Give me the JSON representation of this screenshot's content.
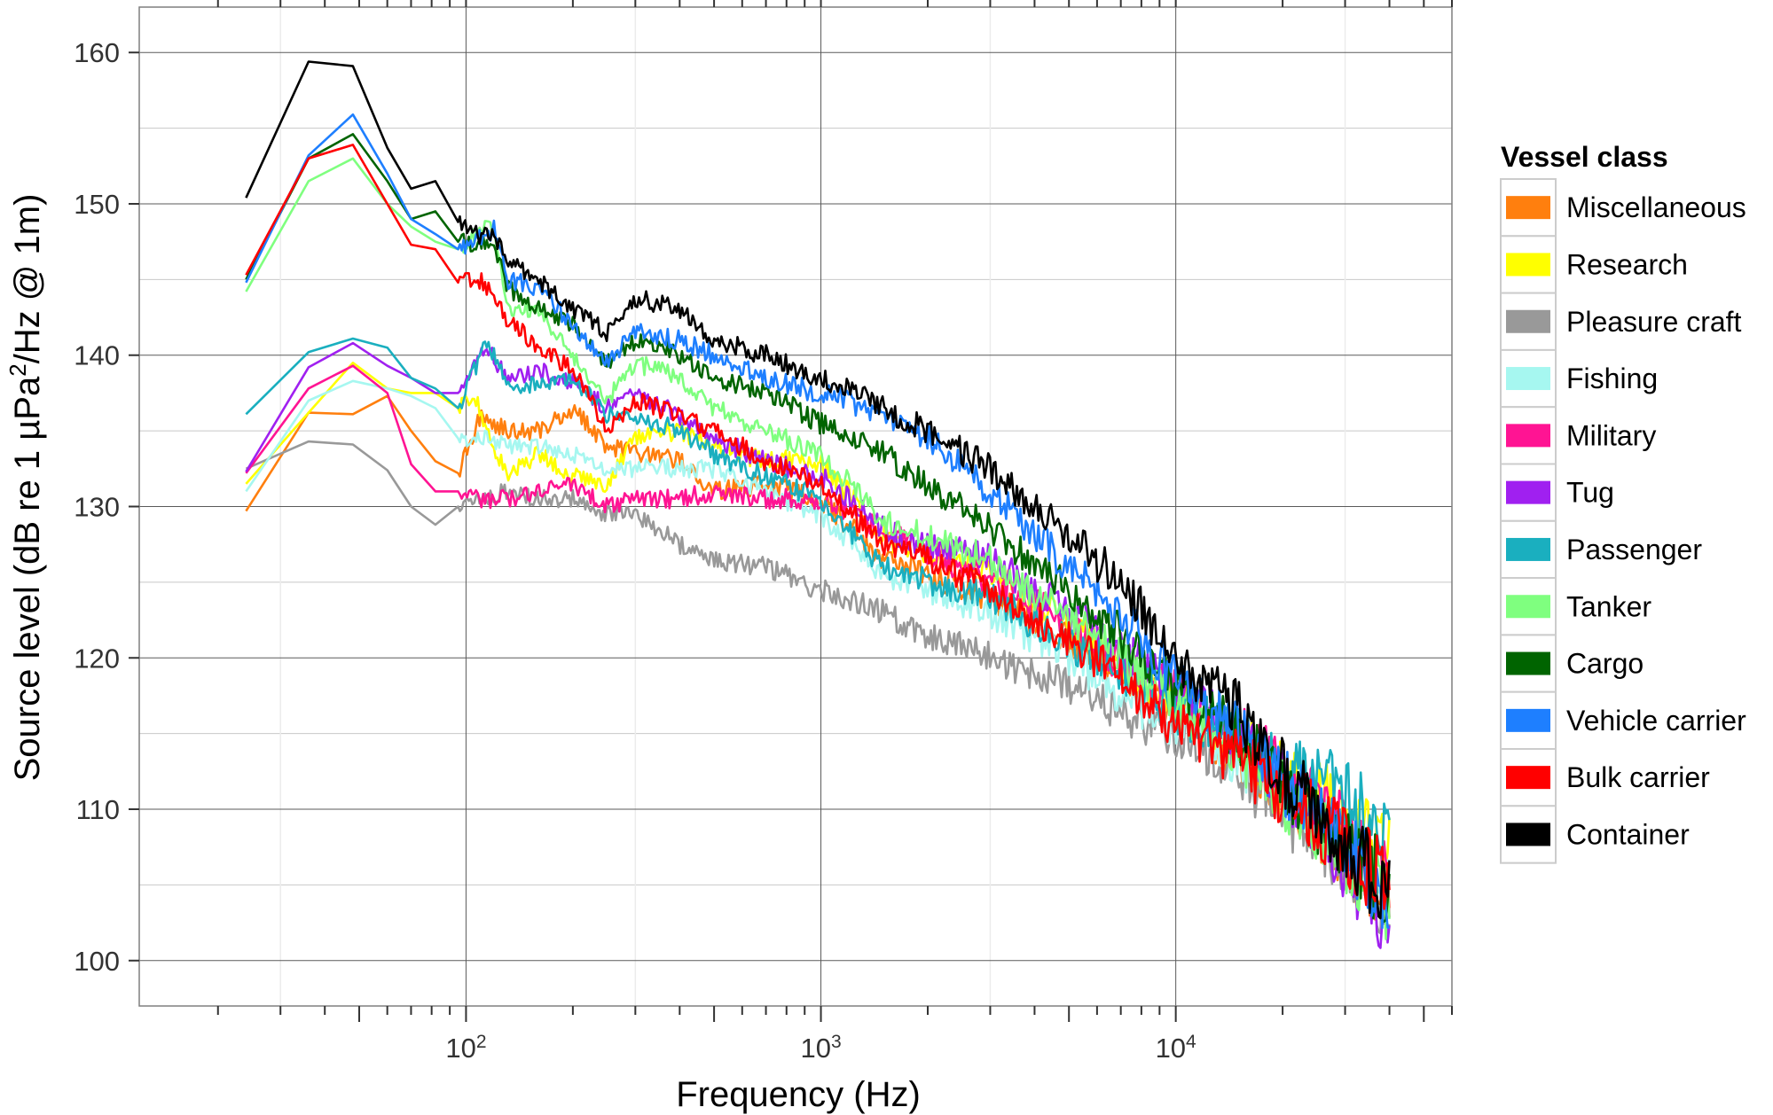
{
  "chart_data": {
    "type": "line",
    "xlabel": "Frequency (Hz)",
    "ylabel": "Source level (dB re 1 µPa²/Hz @ 1m)",
    "ylabel_parts": {
      "pre": "Source level (dB re 1 µPa",
      "sup": "2",
      "post": "/Hz @ 1m)"
    },
    "x_scale": "log10",
    "xlim": [
      12,
      60000
    ],
    "ylim": [
      97,
      163
    ],
    "yticks": [
      100,
      110,
      120,
      130,
      140,
      150,
      160
    ],
    "ytick_labels": [
      "100",
      "110",
      "120",
      "130",
      "140",
      "150",
      "160"
    ],
    "xticks": [
      100,
      1000,
      10000
    ],
    "xtick_labels": [
      {
        "base": "10",
        "exp": "2"
      },
      {
        "base": "10",
        "exp": "3"
      },
      {
        "base": "10",
        "exp": "4"
      }
    ],
    "grid": true,
    "legend_position": "right",
    "legend_title": "Vessel class",
    "series": [
      {
        "name": "Miscellaneous",
        "color": "#ff7f0e",
        "x": [
          24,
          36,
          48,
          60,
          70,
          82,
          95,
          110,
          130,
          160,
          200,
          250,
          300,
          400,
          500,
          700,
          1000,
          1500,
          2000,
          3000,
          5000,
          7000,
          10000,
          15000,
          20000,
          30000,
          40000
        ],
        "y": [
          129.7,
          136.2,
          136.1,
          137.3,
          135,
          133,
          132.2,
          136,
          135,
          135,
          136.5,
          134,
          133.5,
          133,
          131,
          131.5,
          130.5,
          126.5,
          125.5,
          124,
          121,
          119,
          116.8,
          113.5,
          111,
          107,
          104
        ]
      },
      {
        "name": "Research",
        "color": "#ffff00",
        "x": [
          24,
          36,
          48,
          60,
          70,
          82,
          95,
          105,
          115,
          130,
          160,
          200,
          250,
          300,
          400,
          500,
          700,
          1000,
          1500,
          2000,
          3000,
          5000,
          7000,
          10000,
          15000,
          20000,
          30000,
          40000
        ],
        "y": [
          131.5,
          136.2,
          139.5,
          137.8,
          137.5,
          137.5,
          136.5,
          137.5,
          135,
          132,
          133.5,
          132,
          131.5,
          134.5,
          135,
          134,
          133,
          133,
          128,
          127,
          126,
          122,
          119.5,
          117,
          114.5,
          112.5,
          110,
          107.5
        ]
      },
      {
        "name": "Pleasure craft",
        "color": "#999999",
        "x": [
          24,
          36,
          48,
          60,
          70,
          82,
          95,
          110,
          130,
          160,
          200,
          250,
          300,
          400,
          500,
          700,
          1000,
          1500,
          2000,
          3000,
          5000,
          7000,
          10000,
          15000,
          20000,
          30000,
          40000
        ],
        "y": [
          132.5,
          134.3,
          134.1,
          132.4,
          130,
          128.8,
          130,
          130.5,
          131,
          130.5,
          130.5,
          129.5,
          129.5,
          127.5,
          126.5,
          126,
          124.5,
          123,
          121.5,
          120,
          118.2,
          116.5,
          114.8,
          112.5,
          110,
          106.5,
          104
        ]
      },
      {
        "name": "Fishing",
        "color": "#a6f7f0",
        "x": [
          24,
          36,
          48,
          60,
          70,
          82,
          95,
          110,
          130,
          160,
          200,
          250,
          300,
          400,
          500,
          700,
          1000,
          1500,
          2000,
          3000,
          5000,
          7000,
          10000,
          15000,
          20000,
          30000,
          40000
        ],
        "y": [
          131,
          137,
          138.3,
          137.8,
          137.3,
          136.5,
          134.5,
          134.5,
          134,
          134,
          133.5,
          132.5,
          132.5,
          132.5,
          132.5,
          131,
          129.5,
          125.5,
          124.5,
          123,
          120,
          117.5,
          115.5,
          113.5,
          111.5,
          107.5,
          104.5
        ]
      },
      {
        "name": "Military",
        "color": "#ff1493",
        "x": [
          24,
          36,
          48,
          60,
          70,
          82,
          95,
          110,
          130,
          160,
          200,
          250,
          300,
          400,
          500,
          700,
          1000,
          1500,
          2000,
          3000,
          5000,
          7000,
          10000,
          15000,
          20000,
          30000,
          40000
        ],
        "y": [
          132.2,
          137.8,
          139.3,
          137.5,
          132.8,
          131,
          131,
          130.5,
          130.5,
          131,
          131.5,
          130,
          130.5,
          130.5,
          131,
          130.5,
          130.5,
          128.5,
          127,
          125,
          122.5,
          119.5,
          117.5,
          115,
          112.5,
          108.5,
          105.5
        ]
      },
      {
        "name": "Tug",
        "color": "#a020f0",
        "x": [
          24,
          36,
          48,
          60,
          70,
          82,
          95,
          110,
          115,
          130,
          160,
          200,
          250,
          300,
          400,
          500,
          700,
          1000,
          1500,
          2000,
          3000,
          5000,
          7000,
          10000,
          15000,
          20000,
          30000,
          40000
        ],
        "y": [
          132.3,
          139.2,
          140.8,
          139.3,
          138.5,
          137.5,
          137.5,
          140,
          140.5,
          138.5,
          139,
          138.2,
          136.5,
          137.5,
          136,
          134.5,
          133,
          132,
          128.5,
          127.5,
          126.5,
          123,
          120.5,
          118,
          115,
          112,
          106.5,
          102.5
        ]
      },
      {
        "name": "Passenger",
        "color": "#1aafbf",
        "x": [
          24,
          36,
          48,
          60,
          70,
          82,
          95,
          110,
          115,
          130,
          160,
          200,
          250,
          300,
          400,
          500,
          700,
          1000,
          1500,
          2000,
          3000,
          5000,
          7000,
          10000,
          15000,
          20000,
          30000,
          40000
        ],
        "y": [
          136.1,
          140.2,
          141.1,
          140.5,
          138.5,
          137.8,
          136.5,
          140,
          141,
          138,
          138,
          138.5,
          136,
          136,
          135,
          133.5,
          132,
          130.5,
          126,
          125,
          124,
          121,
          119.2,
          116.5,
          115,
          112.5,
          111.5,
          107
        ]
      },
      {
        "name": "Tanker",
        "color": "#7fff7f",
        "x": [
          24,
          36,
          48,
          60,
          70,
          82,
          95,
          110,
          120,
          130,
          160,
          200,
          250,
          300,
          400,
          500,
          700,
          1000,
          1500,
          2000,
          3000,
          5000,
          7000,
          10000,
          15000,
          20000,
          30000,
          40000
        ],
        "y": [
          144.2,
          151.5,
          153,
          150,
          148.5,
          147.5,
          147,
          148.2,
          148.5,
          143,
          143,
          140,
          137,
          139.5,
          138.5,
          136.5,
          135,
          133.5,
          129,
          128,
          126.5,
          122.5,
          120,
          117,
          114,
          111,
          107,
          104
        ]
      },
      {
        "name": "Cargo",
        "color": "#006400",
        "x": [
          24,
          36,
          48,
          60,
          70,
          82,
          95,
          110,
          120,
          130,
          160,
          200,
          250,
          300,
          400,
          500,
          700,
          1000,
          1500,
          2000,
          3000,
          5000,
          7000,
          10000,
          15000,
          20000,
          30000,
          40000
        ],
        "y": [
          145,
          153,
          154.6,
          151.5,
          149,
          149.5,
          147.5,
          147.3,
          147.5,
          144.5,
          143,
          142,
          139.5,
          141,
          140,
          138.5,
          137.5,
          135.5,
          133.5,
          131.5,
          128.5,
          124.5,
          121.5,
          118,
          115,
          112,
          107.5,
          104.5
        ]
      },
      {
        "name": "Vehicle carrier",
        "color": "#1e7fff",
        "x": [
          24,
          36,
          48,
          60,
          70,
          82,
          95,
          110,
          120,
          130,
          160,
          200,
          250,
          300,
          400,
          500,
          700,
          1000,
          1500,
          2000,
          3000,
          5000,
          7000,
          10000,
          15000,
          20000,
          30000,
          40000
        ],
        "y": [
          144.8,
          153.2,
          155.9,
          152,
          149,
          148,
          147,
          147.8,
          148.3,
          145,
          144.5,
          142,
          139.5,
          141.5,
          141,
          140,
          138.5,
          137.5,
          136,
          134.5,
          131,
          126,
          123,
          118.5,
          115,
          112,
          107.5,
          104.5
        ]
      },
      {
        "name": "Bulk carrier",
        "color": "#ff0000",
        "x": [
          24,
          36,
          48,
          60,
          70,
          82,
          95,
          110,
          130,
          160,
          200,
          250,
          300,
          400,
          500,
          700,
          1000,
          1500,
          2000,
          3000,
          5000,
          7000,
          10000,
          15000,
          20000,
          30000,
          40000
        ],
        "y": [
          145.3,
          153,
          153.9,
          150,
          147.3,
          147,
          144.8,
          145,
          142.5,
          140.5,
          139,
          135,
          137,
          136,
          135,
          133,
          131.5,
          127.5,
          126.5,
          124.5,
          121.3,
          118.5,
          115.5,
          113.2,
          111.2,
          107.8,
          104.5
        ]
      },
      {
        "name": "Container",
        "color": "#000000",
        "x": [
          24,
          36,
          48,
          60,
          70,
          82,
          95,
          110,
          120,
          130,
          160,
          200,
          250,
          300,
          400,
          500,
          700,
          1000,
          1500,
          2000,
          3000,
          5000,
          7000,
          10000,
          15000,
          20000,
          30000,
          40000
        ],
        "y": [
          150.4,
          159.4,
          159.1,
          153.7,
          151,
          151.5,
          148.8,
          147.8,
          148,
          146.3,
          145,
          143,
          141.5,
          143.8,
          143,
          141,
          140,
          138.5,
          136.5,
          135,
          132.5,
          128,
          125,
          120,
          116.5,
          112.5,
          108,
          104
        ]
      }
    ]
  }
}
